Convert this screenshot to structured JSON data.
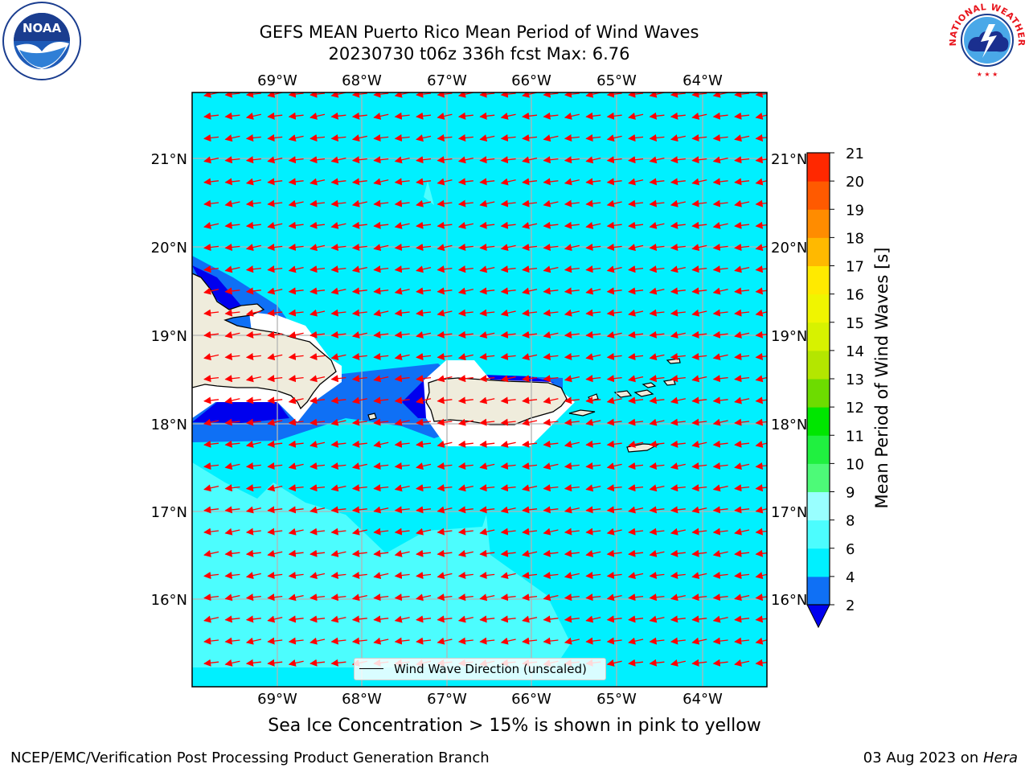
{
  "title": {
    "line1": "GEFS MEAN Puerto Rico Mean Period of Wind Waves",
    "line2": "20230730 t06z 336h fcst   Max: 6.76"
  },
  "logos": {
    "left": {
      "icon": "noaa-logo",
      "text": "NOAA"
    },
    "right": {
      "icon": "nws-logo",
      "text": "NATIONAL WEATHER SERVICE"
    }
  },
  "map": {
    "lon_ticks": [
      "69°W",
      "68°W",
      "67°W",
      "66°W",
      "65°W",
      "64°W"
    ],
    "lat_ticks": [
      "21°N",
      "20°N",
      "19°N",
      "18°N",
      "17°N",
      "16°N"
    ],
    "legend_label": "Wind Wave Direction (unscaled)",
    "arrow_color": "#ff0000",
    "land_color": "#efecdc"
  },
  "colorbar": {
    "label": "Mean Period of Wind Waves [s]",
    "ticks": [
      "2",
      "4",
      "6",
      "8",
      "9",
      "10",
      "11",
      "12",
      "13",
      "14",
      "15",
      "16",
      "17",
      "18",
      "19",
      "20",
      "21"
    ],
    "colors": [
      "#0f70f5",
      "#00f0ff",
      "#4cfdfe",
      "#99ffff",
      "#4dfa78",
      "#20f040",
      "#00e600",
      "#6ddc00",
      "#b4e600",
      "#d7f200",
      "#f0f500",
      "#ffea00",
      "#ffb900",
      "#ff8c00",
      "#ff5a00",
      "#ff2800"
    ],
    "extend_color": "#0000ee"
  },
  "caption": "Sea Ice Concentration > 15% is shown in pink to yellow",
  "footer": {
    "left": "NCEP/EMC/Verification Post Processing Product Generation Branch",
    "date": "03 Aug 2023 on ",
    "host": "Hera"
  }
}
